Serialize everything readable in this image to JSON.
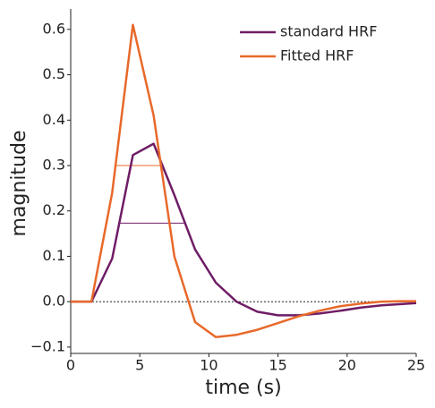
{
  "chart_data": {
    "type": "line",
    "x_label": "time (s)",
    "y_label": "magnitude",
    "x": [
      0,
      1.5,
      3,
      4.5,
      6,
      7.5,
      9,
      10.5,
      12,
      13.5,
      15,
      16.5,
      18,
      19.5,
      21,
      22.5,
      24,
      25
    ],
    "series": [
      {
        "name": "standard HRF",
        "color": "#6f1d66",
        "values": [
          0,
          0,
          0.095,
          0.323,
          0.348,
          0.235,
          0.115,
          0.042,
          0.0,
          -0.022,
          -0.03,
          -0.03,
          -0.026,
          -0.02,
          -0.013,
          -0.008,
          -0.005,
          -0.003
        ]
      },
      {
        "name": "Fitted HRF",
        "color": "#e8692a",
        "values": [
          0,
          0,
          0.24,
          0.61,
          0.41,
          0.1,
          -0.045,
          -0.078,
          -0.073,
          -0.062,
          -0.047,
          -0.032,
          -0.02,
          -0.01,
          -0.004,
          0,
          0.001,
          0.001
        ]
      }
    ],
    "hlines": [
      {
        "y": 0.3,
        "x": [
          3.2,
          6.6
        ],
        "color": "#e8692a"
      },
      {
        "y": 0.173,
        "x": [
          3.5,
          8.3
        ],
        "color": "#6f1d66"
      }
    ],
    "zero_line": true,
    "xlim": [
      0,
      25
    ],
    "xticks": [
      0,
      5,
      10,
      15,
      20,
      25
    ],
    "ylim": [
      -0.114,
      0.645
    ],
    "yticks": [
      {
        "value": -0.1,
        "label": "−0.1"
      },
      {
        "value": 0,
        "label": "0.0"
      },
      0.1,
      0.2,
      0.3,
      0.4,
      0.5,
      0.6
    ],
    "legend": "upper right"
  }
}
